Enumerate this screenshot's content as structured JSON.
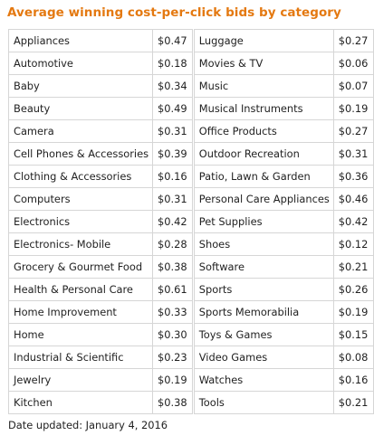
{
  "title": "Average winning cost-per-click bids by category",
  "rows": [
    {
      "cat_a": "Appliances",
      "bid_a": "$0.47",
      "cat_b": "Luggage",
      "bid_b": "$0.27"
    },
    {
      "cat_a": "Automotive",
      "bid_a": "$0.18",
      "cat_b": "Movies & TV",
      "bid_b": "$0.06"
    },
    {
      "cat_a": "Baby",
      "bid_a": "$0.34",
      "cat_b": "Music",
      "bid_b": "$0.07"
    },
    {
      "cat_a": "Beauty",
      "bid_a": "$0.49",
      "cat_b": "Musical Instruments",
      "bid_b": "$0.19"
    },
    {
      "cat_a": "Camera",
      "bid_a": "$0.31",
      "cat_b": "Office Products",
      "bid_b": "$0.27"
    },
    {
      "cat_a": "Cell Phones & Accessories",
      "bid_a": "$0.39",
      "cat_b": "Outdoor Recreation",
      "bid_b": "$0.31"
    },
    {
      "cat_a": "Clothing & Accessories",
      "bid_a": "$0.16",
      "cat_b": "Patio, Lawn & Garden",
      "bid_b": "$0.36"
    },
    {
      "cat_a": "Computers",
      "bid_a": "$0.31",
      "cat_b": "Personal Care Appliances",
      "bid_b": "$0.46"
    },
    {
      "cat_a": "Electronics",
      "bid_a": "$0.42",
      "cat_b": "Pet Supplies",
      "bid_b": "$0.42"
    },
    {
      "cat_a": "Electronics- Mobile",
      "bid_a": "$0.28",
      "cat_b": "Shoes",
      "bid_b": "$0.12"
    },
    {
      "cat_a": "Grocery & Gourmet Food",
      "bid_a": "$0.38",
      "cat_b": "Software",
      "bid_b": "$0.21"
    },
    {
      "cat_a": "Health & Personal Care",
      "bid_a": "$0.61",
      "cat_b": "Sports",
      "bid_b": "$0.26"
    },
    {
      "cat_a": "Home Improvement",
      "bid_a": "$0.33",
      "cat_b": "Sports Memorabilia",
      "bid_b": "$0.19"
    },
    {
      "cat_a": "Home",
      "bid_a": "$0.30",
      "cat_b": "Toys & Games",
      "bid_b": "$0.15"
    },
    {
      "cat_a": "Industrial & Scientific",
      "bid_a": "$0.23",
      "cat_b": "Video Games",
      "bid_b": "$0.08"
    },
    {
      "cat_a": "Jewelry",
      "bid_a": "$0.19",
      "cat_b": "Watches",
      "bid_b": "$0.16"
    },
    {
      "cat_a": "Kitchen",
      "bid_a": "$0.38",
      "cat_b": "Tools",
      "bid_b": "$0.21"
    }
  ],
  "footer": "Date updated: January 4, 2016",
  "colors": {
    "title": "#e47911",
    "border": "#d6d6d6",
    "text": "#222222"
  }
}
